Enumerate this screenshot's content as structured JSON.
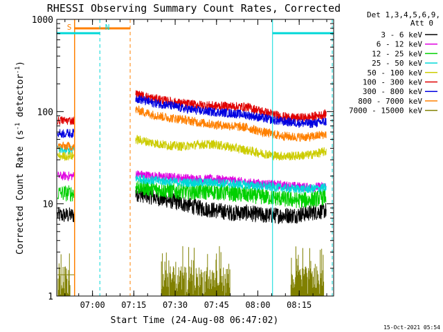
{
  "chart_data": {
    "type": "line",
    "title": "RHESSI Observing Summary Count Rates, Corrected",
    "xlabel": "Start Time (24-Aug-08 06:47:02)",
    "ylabel": "Corrected Count Rate (s",
    "ylabel_sup1": "-1",
    "ylabel_mid": " detector",
    "ylabel_sup2": "-1",
    "ylabel_end": ")",
    "yscale": "log",
    "ylim": [
      1,
      1000
    ],
    "xlim": [
      "06:47:02",
      "08:27:30"
    ],
    "x_ticks": [
      "07:00",
      "07:15",
      "07:30",
      "07:45",
      "08:00",
      "08:15"
    ],
    "y_ticks": [
      "1",
      "10",
      "100",
      "1000"
    ],
    "grid": false,
    "legend_title": [
      "Det 1,3,4,5,6,9,",
      "Att 0"
    ],
    "legend_placement": "right",
    "footer": "15-Oct-2021 05:54",
    "series": [
      {
        "name": "3 - 6 keV",
        "color": "#000000",
        "pre": 7.5,
        "post": [
          13,
          12,
          11,
          10,
          9,
          8.5,
          8,
          8,
          7.5,
          7.5,
          7.5,
          8,
          8.5
        ]
      },
      {
        "name": "6 - 12 keV",
        "color": "#e000e0",
        "pre": 20,
        "post": [
          21,
          20,
          19.5,
          19,
          18.5,
          18.5,
          18,
          17,
          16.5,
          16,
          15.5,
          15,
          15.5
        ]
      },
      {
        "name": "12 - 25 keV",
        "color": "#00d000",
        "pre": 13,
        "post": [
          15.5,
          14.5,
          14,
          13.5,
          13.5,
          13.5,
          13,
          12.5,
          12,
          11.5,
          11,
          11,
          12
        ]
      },
      {
        "name": "25 - 50 keV",
        "color": "#00d8d8",
        "pre": 38,
        "post": [
          19,
          18,
          17.5,
          17,
          17,
          17,
          16.5,
          16,
          15.5,
          15,
          14.5,
          14.5,
          15
        ]
      },
      {
        "name": "50 - 100 keV",
        "color": "#cccc00",
        "pre": 33,
        "post": [
          50,
          46,
          43,
          42,
          44,
          44,
          41,
          38,
          35,
          33,
          33,
          34,
          37
        ]
      },
      {
        "name": "100 - 300 keV",
        "color": "#e00000",
        "pre": 80,
        "post": [
          155,
          140,
          130,
          122,
          118,
          115,
          114,
          112,
          100,
          90,
          85,
          87,
          94
        ]
      },
      {
        "name": "300 - 800 keV",
        "color": "#0000e0",
        "pre": 58,
        "post": [
          140,
          125,
          118,
          108,
          102,
          99,
          96,
          92,
          85,
          79,
          76,
          74,
          78
        ]
      },
      {
        "name": "800 - 7000 keV",
        "color": "#ff8000",
        "pre": 42,
        "post": [
          105,
          93,
          86,
          82,
          76,
          72,
          70,
          67,
          60,
          55,
          53,
          53,
          57
        ]
      },
      {
        "name": "7000 - 15000 keV",
        "color": "#808000",
        "pre": 1.7,
        "post": [
          1,
          1,
          1,
          1,
          1,
          1,
          1,
          1,
          1,
          1,
          1,
          1,
          1
        ]
      }
    ],
    "annotations": [
      {
        "label": "S",
        "color": "#ff8000",
        "time": "06:54",
        "type": "SAA start"
      },
      {
        "label": "N",
        "color": "#00d8d8",
        "time": "07:04",
        "type": "Night"
      }
    ]
  }
}
